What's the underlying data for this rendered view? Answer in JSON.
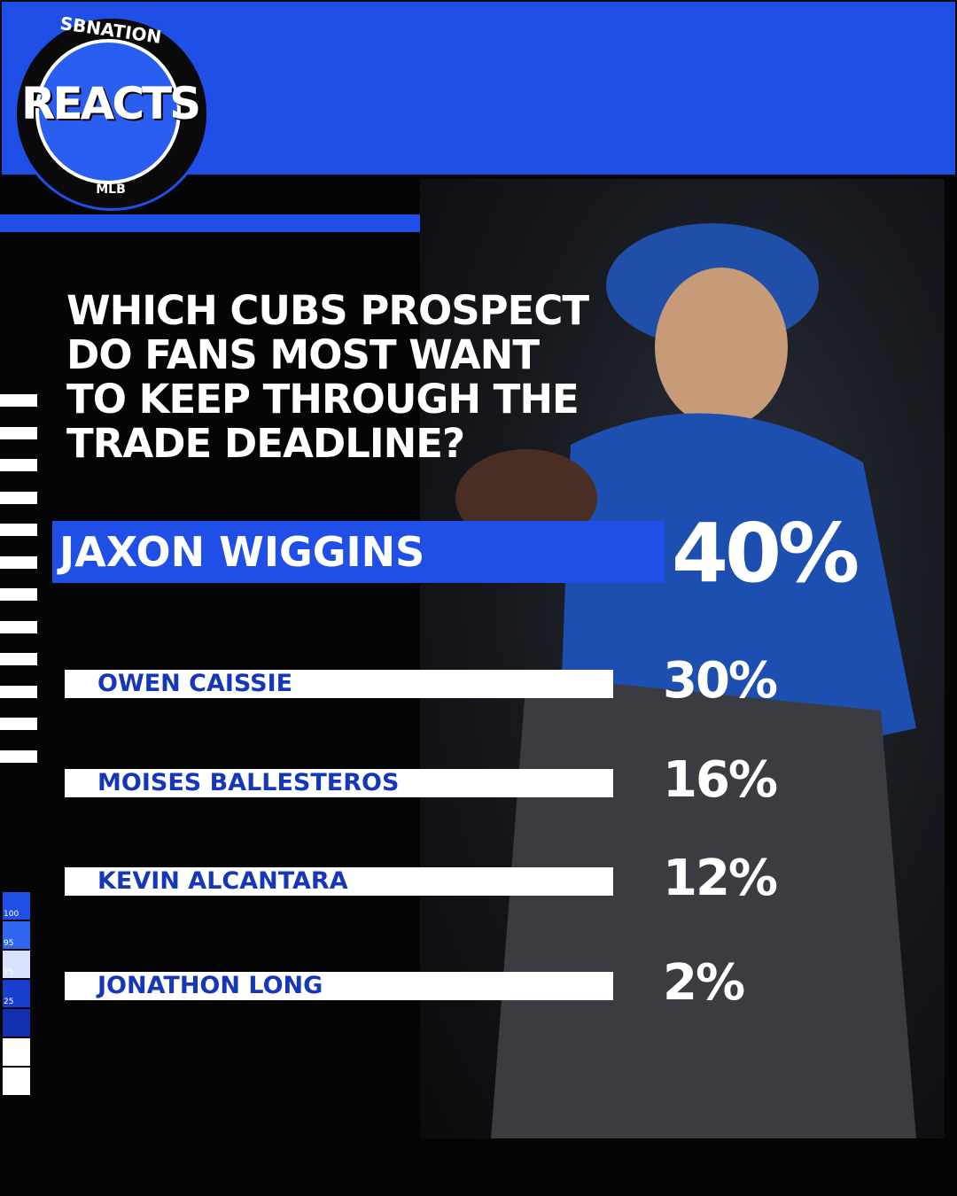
{
  "logo": {
    "brand": "SBNATION",
    "title": "REACTS",
    "league": "MLB"
  },
  "question": "WHICH CUBS PROSPECT DO FANS MOST WANT TO KEEP THROUGH THE TRADE DEADLINE?",
  "results": [
    {
      "name": "JAXON WIGGINS",
      "percent": "40%"
    },
    {
      "name": "OWEN CAISSIE",
      "percent": "30%"
    },
    {
      "name": "MOISES BALLESTEROS",
      "percent": "16%"
    },
    {
      "name": "KEVIN ALCANTARA",
      "percent": "12%"
    },
    {
      "name": "JONATHON LONG",
      "percent": "2%"
    }
  ],
  "scale": [
    "100",
    "95",
    "75",
    "25"
  ]
}
